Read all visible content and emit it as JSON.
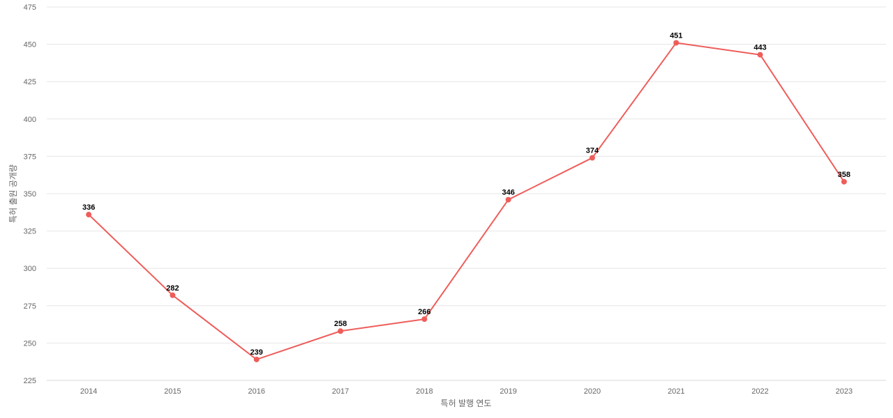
{
  "chart_data": {
    "type": "line",
    "title": "",
    "xlabel": "특허 발행 연도",
    "ylabel": "특허 출원 공개량",
    "categories": [
      "2014",
      "2015",
      "2016",
      "2017",
      "2018",
      "2019",
      "2020",
      "2021",
      "2022",
      "2023"
    ],
    "series": [
      {
        "values": [
          336,
          282,
          239,
          258,
          266,
          346,
          374,
          451,
          443,
          358
        ],
        "color": "#ee5d5a"
      }
    ],
    "ylim": [
      225,
      475
    ],
    "yticks": [
      225,
      250,
      275,
      300,
      325,
      350,
      375,
      400,
      425,
      450,
      475
    ],
    "grid": true,
    "data_labels": true,
    "legend": "none"
  }
}
